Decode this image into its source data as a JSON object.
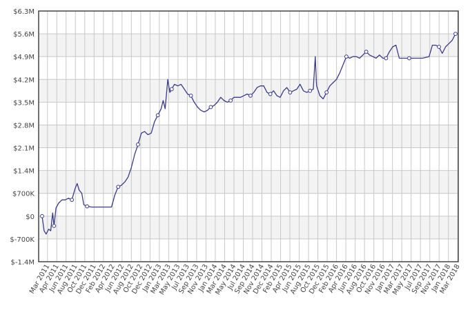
{
  "chart_data": {
    "type": "line",
    "title": "",
    "xlabel": "",
    "ylabel": "",
    "grid": true,
    "ylim": [
      -1400000,
      6300000
    ],
    "y_ticks": [
      {
        "value": 6300000,
        "label": "$6.3M"
      },
      {
        "value": 5600000,
        "label": "$5.6M"
      },
      {
        "value": 4900000,
        "label": "$4.9M"
      },
      {
        "value": 4200000,
        "label": "$4.2M"
      },
      {
        "value": 3500000,
        "label": "$3.5M"
      },
      {
        "value": 2800000,
        "label": "$2.8M"
      },
      {
        "value": 2100000,
        "label": "$2.1M"
      },
      {
        "value": 1400000,
        "label": "$1.4M"
      },
      {
        "value": 700000,
        "label": "$700K"
      },
      {
        "value": 0,
        "label": "$0"
      },
      {
        "value": -700000,
        "label": "$-700K"
      },
      {
        "value": -1400000,
        "label": "$-1.4M"
      }
    ],
    "x_ticks": [
      "Mar 2011",
      "Apr 2011",
      "Jun 2011",
      "Aug 2011",
      "Oct 2011",
      "Dec 2011",
      "Feb 2012",
      "Apr 2012",
      "Jun 2012",
      "Aug 2012",
      "Oct 2012",
      "Dec 2012",
      "Jan 2013",
      "Mar 2013",
      "May 2013",
      "Jul 2013",
      "Sep 2013",
      "Nov 2013",
      "Jan 2014",
      "Mar 2014",
      "May 2014",
      "Jul 2014",
      "Sep 2014",
      "Nov 2014",
      "Dec 2014",
      "Feb 2015",
      "Apr 2015",
      "Jun 2015",
      "Aug 2015",
      "Oct 2015",
      "Dec 2015",
      "Feb 2016",
      "Apr 2016",
      "Jun 2016",
      "Aug 2016",
      "Oct 2016",
      "Nov 2016",
      "Jan 2017",
      "Mar 2017",
      "May 2017",
      "Jul 2017",
      "Sep 2017",
      "Nov 2017",
      "Jan 2018",
      "Mar 2018"
    ],
    "series": [
      {
        "color": "#3a3a8c",
        "points": [
          {
            "x": 0.0,
            "y": 0
          },
          {
            "x": 0.3,
            "y": -450000
          },
          {
            "x": 0.6,
            "y": -550000
          },
          {
            "x": 1.0,
            "y": -400000
          },
          {
            "x": 1.3,
            "y": -450000
          },
          {
            "x": 1.6,
            "y": 100000
          },
          {
            "x": 1.8,
            "y": -300000
          },
          {
            "x": 2.1,
            "y": 250000
          },
          {
            "x": 2.5,
            "y": 400000
          },
          {
            "x": 3.0,
            "y": 500000
          },
          {
            "x": 3.5,
            "y": 500000
          },
          {
            "x": 4.0,
            "y": 550000
          },
          {
            "x": 4.5,
            "y": 500000
          },
          {
            "x": 5.0,
            "y": 850000
          },
          {
            "x": 5.3,
            "y": 1000000
          },
          {
            "x": 5.6,
            "y": 800000
          },
          {
            "x": 6.0,
            "y": 700000
          },
          {
            "x": 6.3,
            "y": 350000
          },
          {
            "x": 6.8,
            "y": 300000
          },
          {
            "x": 7.5,
            "y": 280000
          },
          {
            "x": 8.5,
            "y": 280000
          },
          {
            "x": 9.5,
            "y": 280000
          },
          {
            "x": 10.5,
            "y": 280000
          },
          {
            "x": 11.0,
            "y": 650000
          },
          {
            "x": 11.5,
            "y": 900000
          },
          {
            "x": 12.0,
            "y": 950000
          },
          {
            "x": 12.5,
            "y": 1050000
          },
          {
            "x": 13.0,
            "y": 1200000
          },
          {
            "x": 13.5,
            "y": 1500000
          },
          {
            "x": 14.0,
            "y": 1900000
          },
          {
            "x": 14.5,
            "y": 2200000
          },
          {
            "x": 15.0,
            "y": 2550000
          },
          {
            "x": 15.5,
            "y": 2600000
          },
          {
            "x": 16.0,
            "y": 2500000
          },
          {
            "x": 16.5,
            "y": 2550000
          },
          {
            "x": 17.0,
            "y": 2900000
          },
          {
            "x": 17.5,
            "y": 3100000
          },
          {
            "x": 18.0,
            "y": 3300000
          },
          {
            "x": 18.3,
            "y": 3550000
          },
          {
            "x": 18.6,
            "y": 3300000
          },
          {
            "x": 19.0,
            "y": 4200000
          },
          {
            "x": 19.3,
            "y": 3800000
          },
          {
            "x": 19.6,
            "y": 3900000
          },
          {
            "x": 20.0,
            "y": 4050000
          },
          {
            "x": 20.5,
            "y": 4000000
          },
          {
            "x": 21.0,
            "y": 4050000
          },
          {
            "x": 21.5,
            "y": 3900000
          },
          {
            "x": 22.0,
            "y": 3750000
          },
          {
            "x": 22.5,
            "y": 3700000
          },
          {
            "x": 23.0,
            "y": 3500000
          },
          {
            "x": 23.5,
            "y": 3350000
          },
          {
            "x": 24.0,
            "y": 3250000
          },
          {
            "x": 24.5,
            "y": 3200000
          },
          {
            "x": 25.0,
            "y": 3250000
          },
          {
            "x": 25.5,
            "y": 3350000
          },
          {
            "x": 26.0,
            "y": 3400000
          },
          {
            "x": 26.5,
            "y": 3500000
          },
          {
            "x": 27.0,
            "y": 3650000
          },
          {
            "x": 27.5,
            "y": 3550000
          },
          {
            "x": 28.0,
            "y": 3500000
          },
          {
            "x": 28.5,
            "y": 3550000
          },
          {
            "x": 29.0,
            "y": 3650000
          },
          {
            "x": 29.5,
            "y": 3650000
          },
          {
            "x": 30.0,
            "y": 3650000
          },
          {
            "x": 30.5,
            "y": 3700000
          },
          {
            "x": 31.0,
            "y": 3750000
          },
          {
            "x": 31.5,
            "y": 3700000
          },
          {
            "x": 32.0,
            "y": 3800000
          },
          {
            "x": 32.5,
            "y": 3950000
          },
          {
            "x": 33.0,
            "y": 4000000
          },
          {
            "x": 33.5,
            "y": 4000000
          },
          {
            "x": 34.0,
            "y": 3800000
          },
          {
            "x": 34.5,
            "y": 3750000
          },
          {
            "x": 35.0,
            "y": 3850000
          },
          {
            "x": 35.5,
            "y": 3700000
          },
          {
            "x": 36.0,
            "y": 3650000
          },
          {
            "x": 36.5,
            "y": 3850000
          },
          {
            "x": 37.0,
            "y": 3950000
          },
          {
            "x": 37.5,
            "y": 3800000
          },
          {
            "x": 38.0,
            "y": 3850000
          },
          {
            "x": 38.5,
            "y": 3900000
          },
          {
            "x": 39.0,
            "y": 4050000
          },
          {
            "x": 39.5,
            "y": 3850000
          },
          {
            "x": 40.0,
            "y": 3800000
          },
          {
            "x": 40.5,
            "y": 3850000
          },
          {
            "x": 41.0,
            "y": 3900000
          },
          {
            "x": 41.3,
            "y": 4900000
          },
          {
            "x": 41.5,
            "y": 4000000
          },
          {
            "x": 42.0,
            "y": 3700000
          },
          {
            "x": 42.5,
            "y": 3600000
          },
          {
            "x": 43.0,
            "y": 3800000
          },
          {
            "x": 43.5,
            "y": 4000000
          },
          {
            "x": 44.0,
            "y": 4100000
          },
          {
            "x": 44.5,
            "y": 4200000
          },
          {
            "x": 45.0,
            "y": 4400000
          },
          {
            "x": 45.5,
            "y": 4650000
          },
          {
            "x": 46.0,
            "y": 4900000
          },
          {
            "x": 46.5,
            "y": 4850000
          },
          {
            "x": 47.0,
            "y": 4900000
          },
          {
            "x": 47.5,
            "y": 4900000
          },
          {
            "x": 48.0,
            "y": 4850000
          },
          {
            "x": 48.5,
            "y": 4950000
          },
          {
            "x": 49.0,
            "y": 5050000
          },
          {
            "x": 49.5,
            "y": 4950000
          },
          {
            "x": 50.0,
            "y": 4900000
          },
          {
            "x": 50.5,
            "y": 4850000
          },
          {
            "x": 51.0,
            "y": 4950000
          },
          {
            "x": 51.5,
            "y": 4850000
          },
          {
            "x": 52.0,
            "y": 4850000
          },
          {
            "x": 52.5,
            "y": 5050000
          },
          {
            "x": 53.0,
            "y": 5200000
          },
          {
            "x": 53.5,
            "y": 5250000
          },
          {
            "x": 54.0,
            "y": 4850000
          },
          {
            "x": 54.5,
            "y": 4850000
          },
          {
            "x": 55.5,
            "y": 4850000
          },
          {
            "x": 56.5,
            "y": 4850000
          },
          {
            "x": 57.5,
            "y": 4850000
          },
          {
            "x": 58.5,
            "y": 4900000
          },
          {
            "x": 59.0,
            "y": 5250000
          },
          {
            "x": 59.5,
            "y": 5250000
          },
          {
            "x": 60.0,
            "y": 5200000
          },
          {
            "x": 60.5,
            "y": 5000000
          },
          {
            "x": 61.0,
            "y": 5200000
          },
          {
            "x": 61.5,
            "y": 5300000
          },
          {
            "x": 62.0,
            "y": 5400000
          },
          {
            "x": 62.5,
            "y": 5600000
          }
        ]
      }
    ]
  }
}
